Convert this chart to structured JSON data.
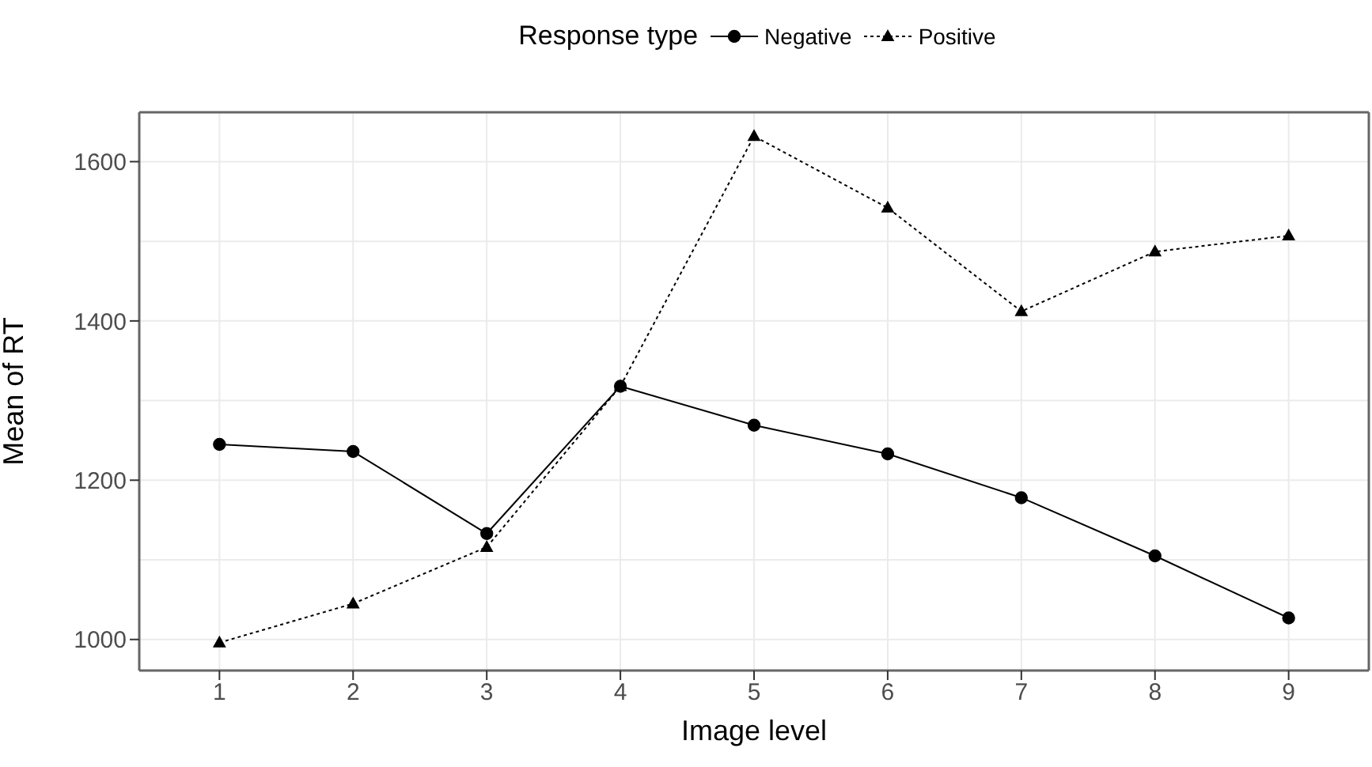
{
  "chart_data": {
    "type": "line",
    "xlabel": "Image level",
    "ylabel": "Mean of RT",
    "legend_title": "Response type",
    "legend": "top",
    "x": [
      1,
      2,
      3,
      4,
      5,
      6,
      7,
      8,
      9
    ],
    "xlim": [
      0.4,
      9.6
    ],
    "xticks": [
      1,
      2,
      3,
      4,
      5,
      6,
      7,
      8,
      9
    ],
    "ylim": [
      961,
      1662
    ],
    "yticks": [
      1000,
      1200,
      1400,
      1600
    ],
    "grid": true,
    "series": [
      {
        "name": "Negative",
        "color": "#000000",
        "marker": "circle",
        "line_style": "solid",
        "values": [
          1245,
          1236,
          1133,
          1318,
          1269,
          1233,
          1178,
          1105,
          1027
        ]
      },
      {
        "name": "Positive",
        "color": "#000000",
        "marker": "triangle",
        "line_style": "dotted",
        "values": [
          996,
          1045,
          1116,
          1318,
          1632,
          1542,
          1412,
          1487,
          1507
        ]
      }
    ]
  }
}
